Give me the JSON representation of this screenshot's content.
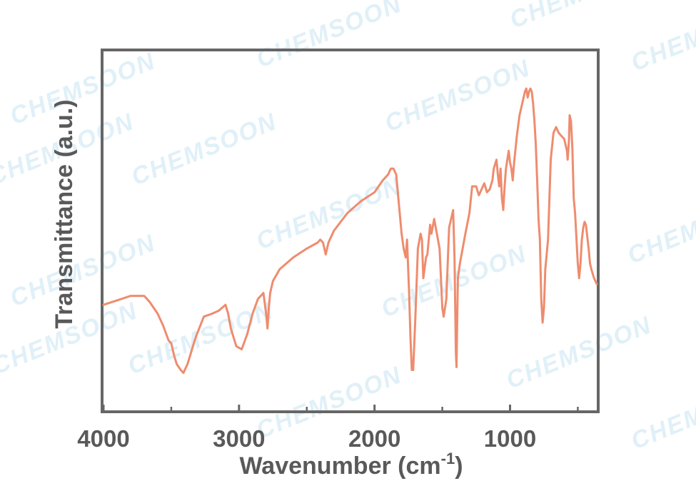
{
  "watermark": "CHEMSOON",
  "chart_data": {
    "type": "line",
    "xlabel_main": "Wavenumber (cm",
    "xlabel_sup": "-1",
    "xlabel_end": ")",
    "ylabel": "Transmittance (a.u.)",
    "xlim": [
      4000,
      360
    ],
    "x_reversed": true,
    "ylim": [
      0,
      100
    ],
    "y_ticks_shown": false,
    "grid": false,
    "x_ticks": [
      4000,
      3000,
      2000,
      1000
    ],
    "x_tick_labels": [
      "4000",
      "3000",
      "2000",
      "1000"
    ],
    "series": [
      {
        "color": "#ee8c6e",
        "x": [
          4000,
          3900,
          3800,
          3700,
          3660,
          3600,
          3560,
          3520,
          3500,
          3480,
          3460,
          3430,
          3410,
          3380,
          3320,
          3260,
          3200,
          3150,
          3100,
          3080,
          3060,
          3020,
          2980,
          2940,
          2900,
          2860,
          2820,
          2800,
          2790,
          2780,
          2770,
          2750,
          2700,
          2600,
          2500,
          2420,
          2400,
          2380,
          2370,
          2360,
          2340,
          2300,
          2200,
          2100,
          2000,
          1940,
          1900,
          1880,
          1860,
          1840,
          1820,
          1800,
          1785,
          1770,
          1760,
          1745,
          1735,
          1725,
          1715,
          1700,
          1680,
          1660,
          1650,
          1640,
          1620,
          1610,
          1590,
          1580,
          1560,
          1540,
          1520,
          1500,
          1490,
          1470,
          1450,
          1440,
          1420,
          1410,
          1400,
          1395,
          1385,
          1370,
          1350,
          1330,
          1300,
          1280,
          1250,
          1230,
          1200,
          1190,
          1170,
          1150,
          1130,
          1120,
          1100,
          1090,
          1080,
          1070,
          1060,
          1050,
          1040,
          1030,
          1020,
          1010,
          1000,
          990,
          980,
          970,
          950,
          930,
          910,
          890,
          880,
          870,
          860,
          850,
          840,
          830,
          820,
          810,
          800,
          790,
          780,
          770,
          760,
          750,
          740,
          720,
          700,
          680,
          660,
          650,
          640,
          620,
          600,
          590,
          580,
          575,
          570,
          565,
          560,
          550,
          540,
          530,
          520,
          500,
          490,
          480,
          470,
          460,
          450,
          440,
          430,
          420,
          410,
          400,
          380,
          360
        ],
        "y": [
          26,
          27.5,
          29,
          29,
          27,
          23,
          19,
          14,
          13,
          9,
          6,
          4,
          3,
          6,
          15,
          22,
          23,
          24,
          26,
          23,
          18,
          12,
          11,
          16,
          23,
          28,
          30,
          23,
          18,
          25,
          30,
          34,
          38,
          42,
          45,
          47,
          48,
          47,
          45,
          43,
          47,
          51,
          57,
          61,
          64,
          68,
          70,
          72,
          72,
          70,
          60,
          50,
          45,
          42,
          48,
          30,
          15,
          4,
          4,
          20,
          45,
          50,
          48,
          35,
          42,
          43,
          53,
          50,
          55,
          50,
          45,
          25,
          22,
          28,
          52,
          54,
          58,
          42,
          10,
          5,
          35,
          40,
          45,
          50,
          57,
          66,
          66,
          63,
          66,
          67,
          64,
          65,
          68,
          72,
          75,
          70,
          66,
          72,
          62,
          58,
          66,
          72,
          75,
          78,
          74,
          72,
          68,
          74,
          83,
          90,
          94,
          98,
          99,
          96,
          98,
          99,
          98,
          94,
          88,
          80,
          68,
          55,
          48,
          28,
          20,
          25,
          38,
          48,
          75,
          84,
          86,
          85,
          84,
          83,
          82,
          80,
          78,
          75,
          78,
          82,
          90,
          88,
          79,
          62,
          57,
          40,
          35,
          40,
          48,
          52,
          54,
          53,
          49,
          45,
          40,
          38,
          35,
          33
        ]
      }
    ]
  }
}
